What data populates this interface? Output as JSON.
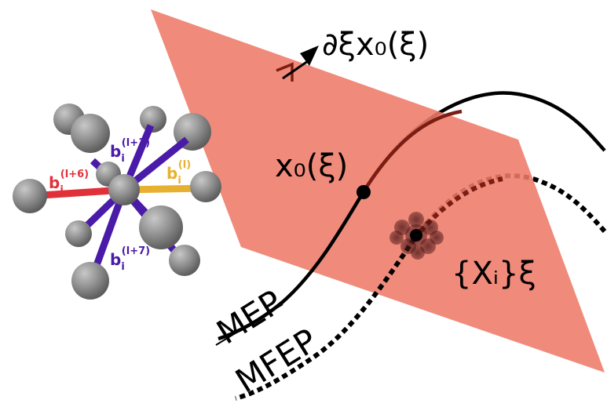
{
  "labels": {
    "gradient": "∂ξx₀(ξ)",
    "point_x0": "x₀(ξ)",
    "samples": "{Xᵢ}ξ",
    "mep": "MEP",
    "mfep": "MFEP"
  },
  "bonds": {
    "b_l6": {
      "base": "b",
      "sub": "i",
      "sup": "(l+6)"
    },
    "b_l1": {
      "base": "b",
      "sub": "i",
      "sup": "(l+1)"
    },
    "b_l": {
      "base": "b",
      "sub": "i",
      "sup": "(l)"
    },
    "b_l7": {
      "base": "b",
      "sub": "i",
      "sup": "(l+7)"
    }
  },
  "colors": {
    "plane": "#ee7a69",
    "bond_red": "#e0313a",
    "bond_purple": "#4a1aa8",
    "bond_orange": "#e8b030",
    "atom": "#8a8a8a",
    "curve": "#000000"
  }
}
